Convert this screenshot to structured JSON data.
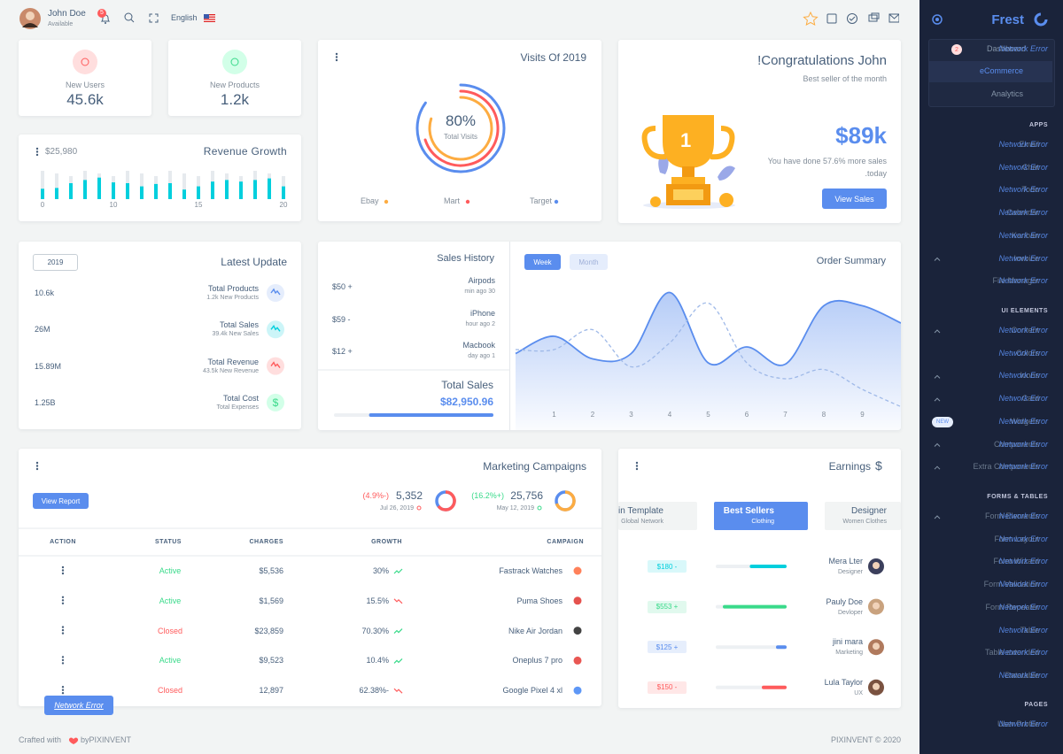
{
  "header": {
    "user_name": "John Doe",
    "user_status": "Available",
    "notifications": "5",
    "language": "English"
  },
  "stats": [
    {
      "label": "New Users",
      "value": "45.6k"
    },
    {
      "label": "New Products",
      "value": "1.2k"
    }
  ],
  "revenue": {
    "title": "Revenue Growth",
    "amount": "$25,980",
    "x_labels": [
      "0",
      "10",
      "15",
      "20"
    ],
    "bars": [
      13,
      14,
      20,
      24,
      27,
      21,
      20,
      16,
      19,
      20,
      12,
      16,
      22,
      24,
      22,
      24,
      26,
      16
    ],
    "ylim": [
      0,
      40
    ]
  },
  "visits": {
    "title": "Visits Of 2019",
    "center_value": "80%",
    "center_label": "Total Visits",
    "rings": [
      {
        "name": "Ebay",
        "color": "#fdac41",
        "value": 80
      },
      {
        "name": "Mart",
        "color": "#ff5b5c",
        "value": 70
      },
      {
        "name": "Target",
        "color": "#5a8dee",
        "value": 85
      }
    ]
  },
  "congrats": {
    "title": "!Congratulations John",
    "subtitle": "Best seller of the month",
    "amount": "$89k",
    "text": "You have done 57.6% more sales",
    "text2": ".today",
    "button": "View Sales",
    "trophy_number": "1"
  },
  "latest_update": {
    "title": "Latest Update",
    "year": "2019",
    "items": [
      {
        "value": "10.6k",
        "title": "Total Products",
        "sub": "1.2k New Products"
      },
      {
        "value": "26M",
        "title": "Total Sales",
        "sub": "39.4k New Sales"
      },
      {
        "value": "15.89M",
        "title": "Total Revenue",
        "sub": "43.5k New Revenue"
      },
      {
        "value": "1.25B",
        "title": "Total Cost",
        "sub": "Total Expenses",
        "symbol": "$"
      }
    ]
  },
  "sales_history": {
    "title": "Sales History",
    "items": [
      {
        "price": "$50 +",
        "name": "Airpods",
        "time": "min ago 30"
      },
      {
        "price": "$59 -",
        "name": "iPhone",
        "time": "hour ago 2"
      },
      {
        "price": "$12 +",
        "name": "Macbook",
        "time": "day ago 1"
      }
    ],
    "total_label": "Total Sales",
    "total": "$82,950.96",
    "progress": 78
  },
  "order_summary": {
    "title": "Order Summary",
    "tabs": [
      "Week",
      "Month"
    ],
    "x": [
      0,
      1,
      2,
      3,
      4,
      5,
      6,
      7,
      8,
      9,
      10
    ],
    "xticks": [
      1,
      2,
      3,
      4,
      5,
      6,
      7,
      8,
      9
    ],
    "xlim": [
      0,
      10
    ],
    "ylim": [
      0,
      100
    ],
    "series": [
      {
        "color": "#5a8dee",
        "values": [
          47,
          60,
          43,
          47,
          93,
          40,
          52,
          39,
          83,
          83,
          70
        ]
      },
      {
        "color": "#9fb9e8",
        "values": [
          50,
          50,
          65,
          37,
          55,
          85,
          40,
          28,
          35,
          20,
          7
        ]
      }
    ]
  },
  "marketing": {
    "title": "Marketing Campaigns",
    "button": "View Report",
    "stats": [
      {
        "change": "(4.9%-)",
        "value": "5,352",
        "date": "Jul 26, 2019",
        "donut": 65,
        "color": "#ff5b5c"
      },
      {
        "change": "(16.2%+)",
        "value": "25,756",
        "date": "May 12, 2019",
        "donut": 70,
        "color": "#fdac41"
      }
    ],
    "columns": [
      "ACTION",
      "STATUS",
      "CHARGES",
      "GROWTH",
      "CAMPAIGN"
    ],
    "rows": [
      [
        "Active",
        "$5,536",
        "30%",
        "Fastrack Watches"
      ],
      [
        "Active",
        "$1,569",
        "15.5%",
        "Puma Shoes"
      ],
      [
        "Closed",
        "$23,859",
        "70.30%",
        "Nike Air Jordan"
      ],
      [
        "Active",
        "$9,523",
        "10.4%",
        "Oneplus 7 pro"
      ],
      [
        "Closed",
        "12,897",
        "62.38%-",
        "Google Pixel 4 xl"
      ]
    ],
    "error_button": "Network Error"
  },
  "earnings": {
    "title": "Earnings",
    "symbol": "$",
    "tabs": [
      {
        "title": "in Template",
        "sub": "Global Network"
      },
      {
        "title": "Best Sellers",
        "sub": "Clothing"
      },
      {
        "title": "Designer",
        "sub": "Women Clothes"
      }
    ],
    "rows": [
      {
        "amount": "$180 -",
        "name": "Mera Lter",
        "role": "Designer",
        "progress": 52,
        "color": "#00cfdd"
      },
      {
        "amount": "$553 +",
        "name": "Pauly Doe",
        "role": "Devloper",
        "progress": 90,
        "color": "#39da8a"
      },
      {
        "amount": "$125 +",
        "name": "jini mara",
        "role": "Marketing",
        "progress": 15,
        "color": "#5a8dee"
      },
      {
        "amount": "$150 -",
        "name": "Lula Taylor",
        "role": "UX",
        "progress": 35,
        "color": "#ff5b5c"
      }
    ]
  },
  "footer": {
    "left": "Crafted with",
    "brand": "byPIXINVENT",
    "right": "PIXINVENT © 2020"
  },
  "sidebar": {
    "brand": "Frest",
    "dashboard": "Dashboard",
    "badge": "2",
    "sub_items": [
      "eCommerce",
      "Analytics"
    ],
    "badge_new": "NEW",
    "error": "Network Error",
    "sections": [
      {
        "title": "APPS",
        "items": [
          "Email",
          "Chat",
          "Todo",
          "Calendar",
          "Kanban",
          "Invoice",
          "File Manager"
        ]
      },
      {
        "title": "UI ELEMENTS",
        "items": [
          "Content",
          "Colors",
          "Icons",
          "Card",
          "Widgets",
          "Components",
          "Extra Components"
        ]
      },
      {
        "title": "FORMS & TABLES",
        "items": [
          "Form Elements",
          "Form Layout",
          "Form Wizard",
          "Form Validation",
          "Form Repeater",
          "Table",
          "Table extended",
          "Datatable"
        ]
      },
      {
        "title": "PAGES",
        "items": [
          "User Profile"
        ]
      }
    ]
  }
}
